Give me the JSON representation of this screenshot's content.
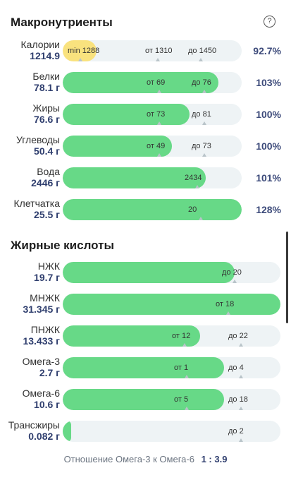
{
  "macros": {
    "title": "Макронутриенты",
    "rows": [
      {
        "name": "Калории",
        "amount": "1214.9",
        "percent": "92.7%",
        "fill": 0.19,
        "color": "yellow",
        "marks": [
          {
            "text": "min 1288",
            "pos": 0.1
          },
          {
            "text": "от 1310",
            "pos": 0.53
          },
          {
            "text": "до 1450",
            "pos": 0.77
          }
        ]
      },
      {
        "name": "Белки",
        "amount": "78.1 г",
        "percent": "103%",
        "fill": 0.87,
        "color": "green",
        "marks": [
          {
            "text": "от 69",
            "pos": 0.54
          },
          {
            "text": "до 76",
            "pos": 0.79
          }
        ]
      },
      {
        "name": "Жиры",
        "amount": "76.6 г",
        "percent": "100%",
        "fill": 0.71,
        "color": "green",
        "marks": [
          {
            "text": "от 73",
            "pos": 0.54
          },
          {
            "text": "до 81",
            "pos": 0.79
          }
        ]
      },
      {
        "name": "Углеводы",
        "amount": "50.4 г",
        "percent": "100%",
        "fill": 0.61,
        "color": "green",
        "marks": [
          {
            "text": "от 49",
            "pos": 0.54
          },
          {
            "text": "до 73",
            "pos": 0.79
          }
        ]
      },
      {
        "name": "Вода",
        "amount": "2446 г",
        "percent": "101%",
        "fill": 0.8,
        "color": "green",
        "marks": [
          {
            "text": "2434",
            "pos": 0.75
          }
        ]
      },
      {
        "name": "Клетчатка",
        "amount": "25.5 г",
        "percent": "128%",
        "fill": 1.0,
        "color": "green",
        "marks": [
          {
            "text": "20",
            "pos": 0.77
          }
        ]
      }
    ]
  },
  "fatty": {
    "title": "Жирные кислоты",
    "rows": [
      {
        "name": "НЖК",
        "amount": "19.7 г",
        "fill": 0.79,
        "marks": [
          {
            "text": "до 20",
            "pos": 0.79
          }
        ]
      },
      {
        "name": "МНЖК",
        "amount": "31.345 г",
        "fill": 1.0,
        "marks": [
          {
            "text": "от 18",
            "pos": 0.76
          }
        ]
      },
      {
        "name": "ПНЖК",
        "amount": "13.433 г",
        "fill": 0.63,
        "marks": [
          {
            "text": "от 12",
            "pos": 0.56
          },
          {
            "text": "до 22",
            "pos": 0.82
          }
        ]
      },
      {
        "name": "Омега-3",
        "amount": "2.7 г",
        "fill": 0.74,
        "marks": [
          {
            "text": "от 1",
            "pos": 0.57
          },
          {
            "text": "до 4",
            "pos": 0.82
          }
        ]
      },
      {
        "name": "Омега-6",
        "amount": "10.6 г",
        "fill": 0.74,
        "marks": [
          {
            "text": "от 5",
            "pos": 0.57
          },
          {
            "text": "до 18",
            "pos": 0.82
          }
        ]
      },
      {
        "name": "Трансжиры",
        "amount": "0.082 г",
        "fill": 0.04,
        "marks": [
          {
            "text": "до 2",
            "pos": 0.82
          }
        ]
      }
    ]
  },
  "ratio": {
    "label": "Отношение Омега-3 к Омега-6",
    "value": "1 : 3.9"
  },
  "colors": {
    "green": "#67d987",
    "yellow": "#f9e27e",
    "track": "#eef3f5"
  }
}
